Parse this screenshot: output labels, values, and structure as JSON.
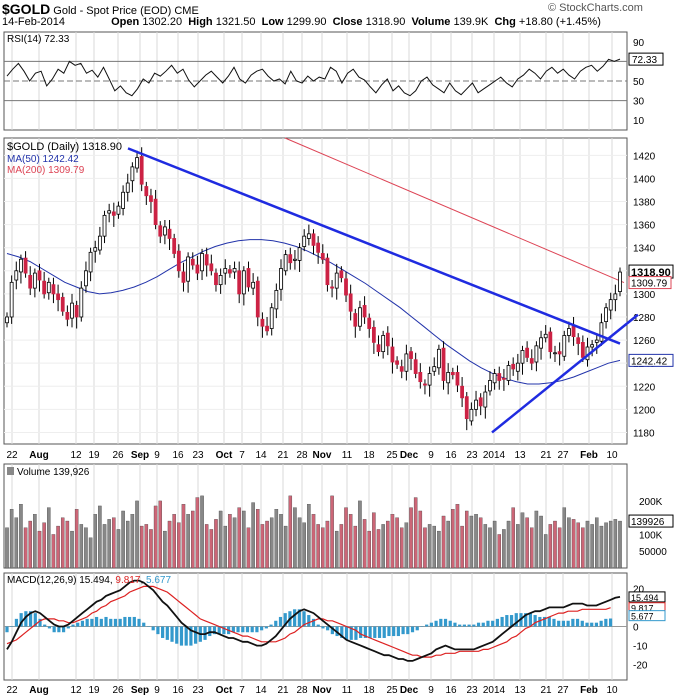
{
  "header": {
    "symbol": "$GOLD",
    "description": "Gold - Spot Price (EOD)",
    "exchange": "CME",
    "date": "14-Feb-2014",
    "open_label": "Open",
    "open": "1302.20",
    "high_label": "High",
    "high": "1321.50",
    "low_label": "Low",
    "low": "1299.90",
    "close_label": "Close",
    "close": "1318.90",
    "volume_label": "Volume",
    "volume": "139.9K",
    "chg_label": "Chg",
    "chg": "+18.80 (+1.45%)",
    "watermark": "© StockCharts.com"
  },
  "colors": {
    "up": "#ffffff",
    "down": "#cc2244",
    "ma50": "#2233aa",
    "ma200": "#dd4455",
    "trend": "#1f2be0",
    "vol_up": "#888888",
    "vol_down": "#cc6677",
    "macd": "#111111",
    "signal": "#dd2222",
    "hist": "#3399cc",
    "grid": "#d8d8d8"
  },
  "chart_data": [
    {
      "type": "line",
      "name": "rsi",
      "legend": "RSI(14) 72.33",
      "last_value": "72.33",
      "ylim": [
        0,
        100
      ],
      "yticks": [
        "90",
        "70",
        "50",
        "30",
        "10"
      ],
      "reference_lines": [
        70,
        50,
        30
      ],
      "values": [
        55,
        62,
        68,
        60,
        50,
        58,
        60,
        45,
        52,
        62,
        58,
        70,
        66,
        68,
        58,
        61,
        54,
        64,
        52,
        40,
        45,
        38,
        35,
        42,
        52,
        48,
        58,
        55,
        60,
        66,
        58,
        62,
        51,
        44,
        50,
        56,
        60,
        54,
        48,
        55,
        64,
        52,
        48,
        56,
        60,
        62,
        55,
        50,
        52,
        47,
        60,
        50,
        48,
        55,
        50,
        54,
        52,
        64,
        60,
        48,
        58,
        62,
        54,
        51,
        44,
        38,
        46,
        52,
        40,
        45,
        38,
        35,
        40,
        50,
        54,
        46,
        42,
        38,
        48,
        40,
        36,
        42,
        48,
        38,
        42,
        46,
        50,
        54,
        48,
        44,
        52,
        56,
        62,
        58,
        52,
        60,
        64,
        58,
        62,
        56,
        52,
        60,
        64,
        66,
        60,
        65,
        72,
        70,
        72.33
      ]
    },
    {
      "type": "candlestick",
      "name": "price",
      "title": "$GOLD (Daily) 1318.90",
      "legend": [
        "MA(50) 1242.42",
        "MA(200) 1309.79"
      ],
      "last_close": "1318.90",
      "ma200_last": "1309.79",
      "ma50_last": "1242.42",
      "ylim": [
        1170,
        1435
      ],
      "yticks": [
        "1420",
        "1400",
        "1380",
        "1360",
        "1340",
        "1320",
        "1300",
        "1280",
        "1260",
        "1240",
        "1220",
        "1200",
        "1180"
      ],
      "x_tick_labels": [
        "22",
        "Aug",
        "12",
        "19",
        "26",
        "Sep",
        "9",
        "16",
        "23",
        "Oct",
        "7",
        "14",
        "21",
        "28",
        "Nov",
        "11",
        "18",
        "25",
        "Dec",
        "9",
        "16",
        "23",
        "2014",
        "13",
        "21",
        "27",
        "Feb",
        "10"
      ],
      "close": [
        1280,
        1310,
        1320,
        1330,
        1318,
        1305,
        1318,
        1312,
        1300,
        1310,
        1300,
        1295,
        1285,
        1278,
        1292,
        1280,
        1305,
        1320,
        1336,
        1340,
        1350,
        1368,
        1372,
        1368,
        1376,
        1388,
        1396,
        1410,
        1418,
        1395,
        1385,
        1380,
        1360,
        1350,
        1358,
        1348,
        1335,
        1320,
        1310,
        1332,
        1325,
        1318,
        1335,
        1325,
        1320,
        1308,
        1316,
        1322,
        1318,
        1322,
        1300,
        1320,
        1306,
        1310,
        1280,
        1272,
        1268,
        1288,
        1303,
        1322,
        1334,
        1327,
        1330,
        1340,
        1350,
        1352,
        1342,
        1336,
        1330,
        1308,
        1305,
        1318,
        1314,
        1299,
        1285,
        1272,
        1288,
        1280,
        1270,
        1258,
        1250,
        1264,
        1255,
        1241,
        1239,
        1233,
        1248,
        1244,
        1231,
        1224,
        1221,
        1231,
        1237,
        1252,
        1225,
        1232,
        1230,
        1221,
        1210,
        1192,
        1200,
        1208,
        1203,
        1215,
        1225,
        1231,
        1225,
        1226,
        1238,
        1235,
        1240,
        1251,
        1245,
        1240,
        1255,
        1262,
        1265,
        1250,
        1249,
        1248,
        1264,
        1270,
        1263,
        1257,
        1245,
        1254,
        1256,
        1260,
        1275,
        1288,
        1295,
        1300,
        1318.9
      ],
      "ma50": [
        1335,
        1332,
        1328,
        1322,
        1316,
        1310,
        1306,
        1302,
        1300,
        1301,
        1303,
        1306,
        1310,
        1315,
        1321,
        1327,
        1332,
        1337,
        1341,
        1344,
        1346,
        1347,
        1347,
        1346,
        1344,
        1341,
        1337,
        1332,
        1327,
        1321,
        1315,
        1309,
        1302,
        1295,
        1288,
        1280,
        1272,
        1264,
        1256,
        1249,
        1242,
        1236,
        1231,
        1227,
        1224,
        1222,
        1222,
        1223,
        1225,
        1228,
        1232,
        1236,
        1240,
        1242.42
      ]
    },
    {
      "type": "bar",
      "name": "volume",
      "legend": "Volume 139,926",
      "last_value": "139926",
      "ylim": [
        0,
        310000
      ],
      "yticks": [
        "200K",
        "100K",
        "50000"
      ],
      "values": [
        120,
        175,
        150,
        190,
        120,
        140,
        160,
        110,
        135,
        180,
        100,
        125,
        150,
        140,
        110,
        175,
        130,
        120,
        90,
        160,
        185,
        130,
        145,
        150,
        115,
        170,
        140,
        160,
        200,
        125,
        130,
        115,
        185,
        200,
        110,
        140,
        160,
        135,
        190,
        160,
        170,
        210,
        215,
        130,
        115,
        145,
        170,
        125,
        160,
        150,
        180,
        170,
        120,
        195,
        175,
        130,
        140,
        150,
        175,
        160,
        125,
        215,
        180,
        150,
        135,
        190,
        160,
        130,
        120,
        140,
        215,
        110,
        130,
        180,
        160,
        125,
        200,
        145,
        110,
        165,
        115,
        130,
        140,
        160,
        150,
        120,
        135,
        180,
        210,
        170,
        120,
        130,
        125,
        110,
        155,
        140,
        175,
        190,
        125,
        170,
        155,
        160,
        150,
        130,
        120,
        140,
        100,
        115,
        140,
        180,
        130,
        165,
        150,
        120,
        170,
        155,
        100,
        130,
        140,
        120,
        180,
        150,
        145,
        135,
        120,
        140,
        130,
        150,
        125,
        135,
        140,
        145,
        139.9
      ]
    },
    {
      "type": "line",
      "name": "macd",
      "legend": [
        "MACD(12,26,9)",
        "15.494",
        "9.817",
        "5.677"
      ],
      "macd_last": "15.494",
      "signal_last": "9.817",
      "hist_last": "5.677",
      "ylim": [
        -28,
        28
      ],
      "yticks": [
        "20",
        "10",
        "0",
        "-10",
        "-20"
      ],
      "macd_values": [
        -12,
        -8,
        -3,
        2,
        5,
        7,
        8,
        7,
        5,
        3,
        1,
        0,
        0,
        1,
        3,
        5,
        7,
        9,
        11,
        13,
        14,
        16,
        17,
        18,
        19,
        21,
        23,
        24,
        24,
        23,
        21,
        19,
        16,
        13,
        11,
        8,
        5,
        2,
        0,
        -2,
        -3,
        -4,
        -4,
        -3,
        -3,
        -4,
        -5,
        -6,
        -6,
        -7,
        -8,
        -8,
        -9,
        -10,
        -10,
        -9,
        -7,
        -5,
        -2,
        1,
        4,
        6,
        8,
        9,
        8,
        7,
        5,
        3,
        1,
        -1,
        -3,
        -5,
        -7,
        -8,
        -9,
        -10,
        -11,
        -12,
        -13,
        -14,
        -15,
        -15,
        -16,
        -17,
        -17,
        -18,
        -18,
        -17,
        -16,
        -15,
        -14,
        -12,
        -11,
        -10,
        -11,
        -12,
        -12,
        -12,
        -12,
        -12,
        -11,
        -10,
        -9,
        -8,
        -6,
        -4,
        -2,
        0,
        2,
        4,
        6,
        7,
        8,
        8,
        9,
        10,
        10,
        10,
        10,
        11,
        12,
        12,
        12,
        11,
        11,
        11,
        12,
        13,
        14,
        15,
        15.494
      ],
      "signal_values": [
        -9,
        -8,
        -7,
        -5,
        -3,
        -1,
        1,
        3,
        4,
        4,
        4,
        3,
        3,
        2,
        2,
        3,
        4,
        5,
        7,
        8,
        10,
        11,
        13,
        14,
        15,
        16,
        18,
        19,
        20,
        21,
        21,
        21,
        20,
        19,
        18,
        16,
        14,
        12,
        10,
        8,
        6,
        4,
        3,
        2,
        1,
        0,
        -1,
        -2,
        -3,
        -4,
        -5,
        -5,
        -6,
        -7,
        -8,
        -8,
        -8,
        -8,
        -7,
        -6,
        -4,
        -3,
        -1,
        1,
        2,
        3,
        4,
        4,
        3,
        3,
        2,
        1,
        0,
        -1,
        -2,
        -4,
        -5,
        -6,
        -7,
        -8,
        -9,
        -10,
        -11,
        -12,
        -13,
        -14,
        -15,
        -15,
        -16,
        -16,
        -16,
        -15,
        -15,
        -14,
        -14,
        -14,
        -13,
        -13,
        -13,
        -13,
        -13,
        -12,
        -12,
        -11,
        -10,
        -9,
        -8,
        -6,
        -5,
        -3,
        -1,
        0,
        2,
        3,
        4,
        5,
        6,
        7,
        7,
        8,
        8,
        8,
        9,
        9,
        9,
        9,
        9,
        9,
        9.817
      ]
    }
  ]
}
